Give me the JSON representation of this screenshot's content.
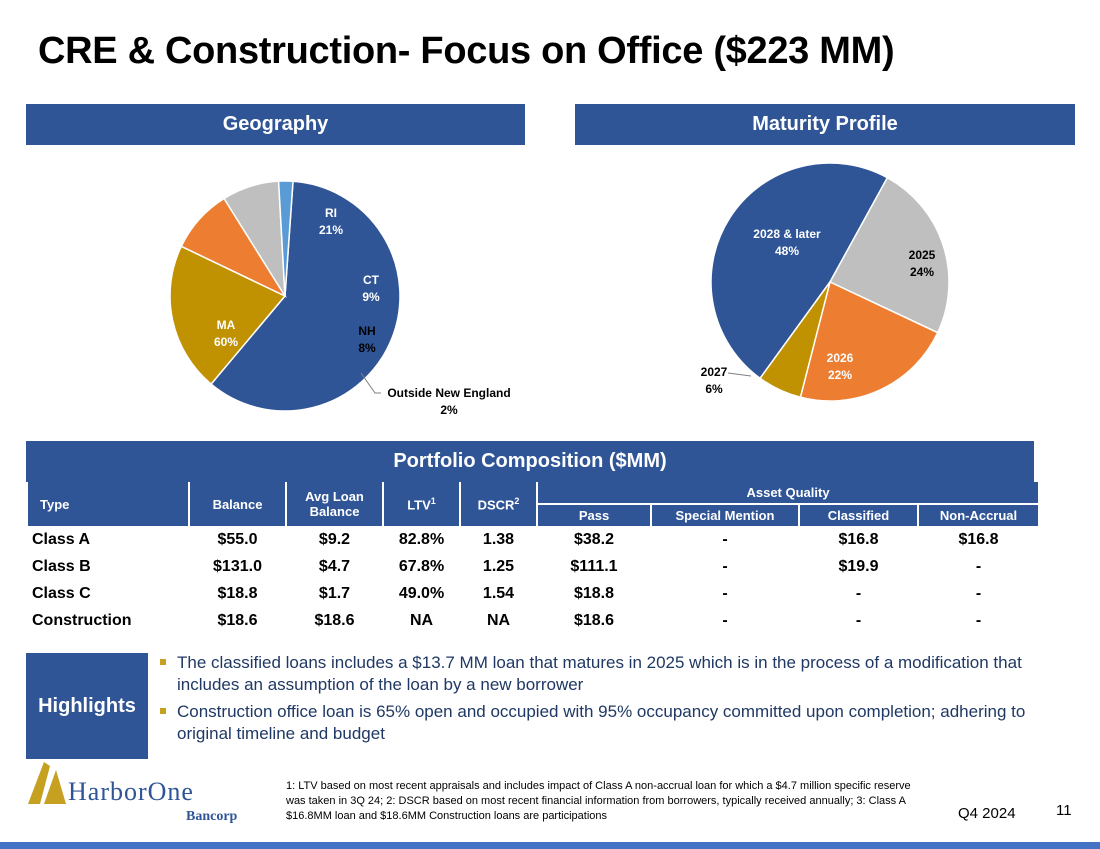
{
  "title": "CRE & Construction- Focus on Office ($223 MM)",
  "geography": {
    "header": "Geography",
    "slices": [
      {
        "name": "MA",
        "label": "60%",
        "value": 60,
        "color": "#2f5597"
      },
      {
        "name": "RI",
        "label": "21%",
        "value": 21,
        "color": "#c09100"
      },
      {
        "name": "CT",
        "label": "9%",
        "value": 9,
        "color": "#ed7d31"
      },
      {
        "name": "NH",
        "label": "8%",
        "value": 8,
        "color": "#bfbfbf"
      },
      {
        "name": "Outside New England",
        "label": "2%",
        "value": 2,
        "color": "#5b9bd5"
      }
    ]
  },
  "maturity": {
    "header": "Maturity Profile",
    "slices": [
      {
        "name": "2028 & later",
        "label": "48%",
        "value": 48,
        "color": "#2f5597"
      },
      {
        "name": "2025",
        "label": "24%",
        "value": 24,
        "color": "#bfbfbf"
      },
      {
        "name": "2026",
        "label": "22%",
        "value": 22,
        "color": "#ed7d31"
      },
      {
        "name": "2027",
        "label": "6%",
        "value": 6,
        "color": "#c09100"
      }
    ]
  },
  "portfolio": {
    "header": "Portfolio Composition ($MM)",
    "columns": {
      "type": "Type",
      "balance": "Balance",
      "avg_loan": "Avg Loan Balance",
      "ltv": "LTV",
      "ltv_sup": "1",
      "dscr": "DSCR",
      "dscr_sup": "2",
      "asset_quality": "Asset Quality",
      "pass": "Pass",
      "special": "Special Mention",
      "classified": "Classified",
      "nonaccrual": "Non-Accrual"
    },
    "rows": [
      {
        "type": "Class A",
        "balance": "$55.0",
        "avg": "$9.2",
        "ltv": "82.8%",
        "dscr": "1.38",
        "pass": "$38.2",
        "special": "-",
        "classified": "$16.8",
        "nonaccrual": "$16.8"
      },
      {
        "type": "Class B",
        "balance": "$131.0",
        "avg": "$4.7",
        "ltv": "67.8%",
        "dscr": "1.25",
        "pass": "$111.1",
        "special": "-",
        "classified": "$19.9",
        "nonaccrual": "-"
      },
      {
        "type": "Class C",
        "balance": "$18.8",
        "avg": "$1.7",
        "ltv": "49.0%",
        "dscr": "1.54",
        "pass": "$18.8",
        "special": "-",
        "classified": "-",
        "nonaccrual": "-"
      },
      {
        "type": "Construction",
        "balance": "$18.6",
        "avg": "$18.6",
        "ltv": "NA",
        "dscr": "NA",
        "pass": "$18.6",
        "special": "-",
        "classified": "-",
        "nonaccrual": "-"
      }
    ]
  },
  "highlights": {
    "label": "Highlights",
    "items": [
      "The classified loans includes a $13.7 MM loan that matures in 2025 which is in the process of a modification that includes an assumption of the loan by a new borrower",
      "Construction office loan is 65% open and occupied with 95% occupancy committed upon completion; adhering to original timeline and budget"
    ]
  },
  "footnote": "1: LTV based on most recent appraisals and includes impact of Class A non-accrual loan for which a $4.7 million specific reserve was taken in 3Q 24; 2: DSCR based on most recent financial information from borrowers, typically received annually; 3: Class A $16.8MM loan and $18.6MM Construction loans are participations",
  "logo": {
    "name": "HarborOne",
    "sub": "Bancorp"
  },
  "quarter": "Q4 2024",
  "page_number": "11"
}
